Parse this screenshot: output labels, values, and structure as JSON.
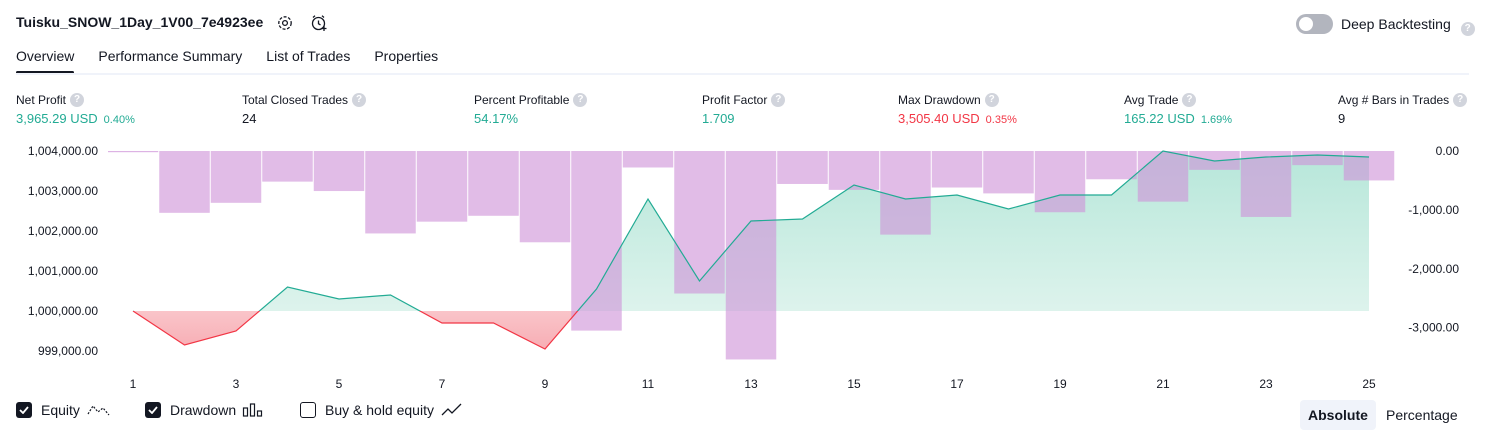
{
  "header": {
    "strategy_name": "Tuisku_SNOW_1Day_1V00_7e4923ee",
    "deep_backtesting_label": "Deep Backtesting",
    "help_glyph": "?"
  },
  "tabs": [
    {
      "label": "Overview",
      "active": true
    },
    {
      "label": "Performance Summary",
      "active": false
    },
    {
      "label": "List of Trades",
      "active": false
    },
    {
      "label": "Properties",
      "active": false
    }
  ],
  "metrics": [
    {
      "label": "Net Profit",
      "value": "3,965.29 USD",
      "sub": "0.40%",
      "color": "#22ab94"
    },
    {
      "label": "Total Closed Trades",
      "value": "24",
      "sub": "",
      "color": "#131722"
    },
    {
      "label": "Percent Profitable",
      "value": "54.17%",
      "sub": "",
      "color": "#22ab94"
    },
    {
      "label": "Profit Factor",
      "value": "1.709",
      "sub": "",
      "color": "#22ab94"
    },
    {
      "label": "Max Drawdown",
      "value": "3,505.40 USD",
      "sub": "0.35%",
      "color": "#f23645"
    },
    {
      "label": "Avg Trade",
      "value": "165.22 USD",
      "sub": "1.69%",
      "color": "#22ab94"
    },
    {
      "label": "Avg # Bars in Trades",
      "value": "9",
      "sub": "",
      "color": "#131722"
    }
  ],
  "legend": {
    "equity": "Equity",
    "drawdown": "Drawdown",
    "buy_hold": "Buy & hold equity",
    "equity_checked": true,
    "drawdown_checked": true,
    "buy_hold_checked": false
  },
  "mode": {
    "absolute": "Absolute",
    "percentage": "Percentage",
    "selected": "Absolute"
  },
  "colors": {
    "equity": "#22ab94",
    "equity_negative": "#f23645",
    "drawdown": "#ce93d8",
    "text": "#131722"
  },
  "chart_data": {
    "type": "line",
    "x": [
      1,
      2,
      3,
      4,
      5,
      6,
      7,
      8,
      9,
      10,
      11,
      12,
      13,
      14,
      15,
      16,
      17,
      18,
      19,
      20,
      21,
      22,
      23,
      24,
      25
    ],
    "x_tick_labels": [
      "1",
      "3",
      "5",
      "7",
      "9",
      "11",
      "13",
      "15",
      "17",
      "19",
      "21",
      "23",
      "25"
    ],
    "left_axis": {
      "ticks": [
        "1,004,000.00",
        "1,003,000.00",
        "1,002,000.00",
        "1,001,000.00",
        "1,000,000.00",
        "999,000.00"
      ],
      "ylim": [
        998750,
        1004000
      ]
    },
    "right_axis": {
      "ticks": [
        "0.00",
        "-1,000.00",
        "-2,000.00",
        "-3,000.00"
      ],
      "ylim": [
        -3600,
        0
      ]
    },
    "series": [
      {
        "name": "Equity",
        "values": [
          1000000,
          999150,
          999500,
          1000600,
          1000300,
          1000400,
          999700,
          999700,
          999050,
          1000550,
          1002800,
          1000750,
          1002250,
          1002300,
          1003150,
          1002800,
          1002900,
          1002550,
          1002900,
          1002900,
          1004000,
          1003750,
          1003850,
          1003900,
          1003850
        ],
        "baseline": 1000000
      },
      {
        "name": "Drawdown",
        "values": [
          0,
          -1050,
          -880,
          -520,
          -680,
          -1400,
          -1200,
          -1100,
          -1550,
          -3050,
          -280,
          -2420,
          -3540,
          -560,
          -660,
          -1420,
          -620,
          -720,
          -1040,
          -480,
          -860,
          -320,
          -1120,
          -240,
          -500
        ]
      }
    ]
  }
}
